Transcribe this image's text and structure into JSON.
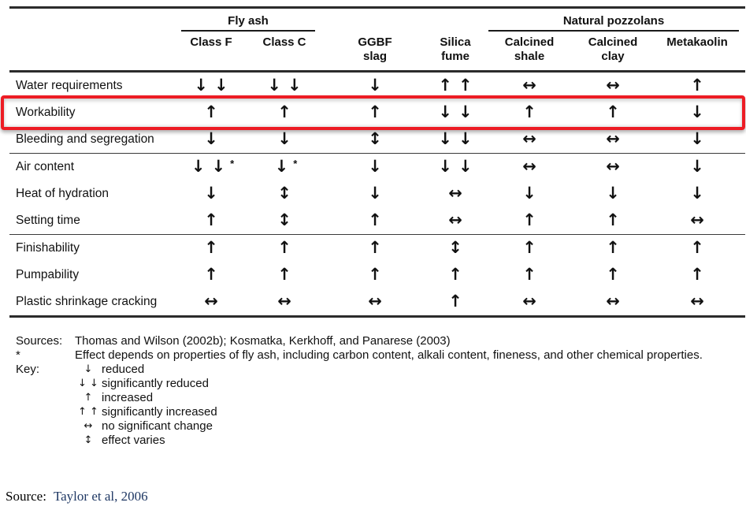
{
  "colors": {
    "highlight": "#ed1c24",
    "citation": "#1f3864",
    "line": "#2b2b2b"
  },
  "table": {
    "group_headers": [
      {
        "label": "Fly ash",
        "span": 2
      },
      {
        "label": "Natural pozzolans",
        "span": 3
      }
    ],
    "columns": [
      "Class F",
      "Class C",
      "GGBF\nslag",
      "Silica\nfume",
      "Calcined\nshale",
      "Calcined\nclay",
      "Metakaolin"
    ],
    "rows": [
      {
        "label": "Water requirements",
        "cells": [
          "↓↓",
          "↓↓",
          "↓",
          "↑↑",
          "↔",
          "↔",
          "↑"
        ],
        "highlighted": false,
        "group_end": false
      },
      {
        "label": "Workability",
        "cells": [
          "↑",
          "↑",
          "↑",
          "↓↓",
          "↑",
          "↑",
          "↓"
        ],
        "highlighted": true,
        "group_end": false
      },
      {
        "label": "Bleeding and segregation",
        "cells": [
          "↓",
          "↓",
          "↕",
          "↓↓",
          "↔",
          "↔",
          "↓"
        ],
        "highlighted": false,
        "group_end": true
      },
      {
        "label": "Air content",
        "cells": [
          "↓↓*",
          "↓*",
          "↓",
          "↓↓",
          "↔",
          "↔",
          "↓"
        ],
        "highlighted": false,
        "group_end": false
      },
      {
        "label": "Heat of hydration",
        "cells": [
          "↓",
          "↕",
          "↓",
          "↔",
          "↓",
          "↓",
          "↓"
        ],
        "highlighted": false,
        "group_end": false
      },
      {
        "label": "Setting time",
        "cells": [
          "↑",
          "↕",
          "↑",
          "↔",
          "↑",
          "↑",
          "↔"
        ],
        "highlighted": false,
        "group_end": true
      },
      {
        "label": "Finishability",
        "cells": [
          "↑",
          "↑",
          "↑",
          "↕",
          "↑",
          "↑",
          "↑"
        ],
        "highlighted": false,
        "group_end": false
      },
      {
        "label": "Pumpability",
        "cells": [
          "↑",
          "↑",
          "↑",
          "↑",
          "↑",
          "↑",
          "↑"
        ],
        "highlighted": false,
        "group_end": false
      },
      {
        "label": "Plastic shrinkage cracking",
        "cells": [
          "↔",
          "↔",
          "↔",
          "↑",
          "↔",
          "↔",
          "↔"
        ],
        "highlighted": false,
        "group_end": false
      }
    ]
  },
  "footnotes": {
    "sources_label": "Sources:",
    "sources_text": "Thomas and Wilson (2002b); Kosmatka, Kerkhoff, and Panarese (2003)",
    "asterisk_label": "*",
    "asterisk_text": "Effect depends on properties of fly ash, including carbon content, alkali content, fineness, and other chemical properties.",
    "key_label": "Key:",
    "key_items": [
      {
        "symbol": "↓",
        "meaning": "reduced"
      },
      {
        "symbol": "↓ ↓",
        "meaning": "significantly reduced"
      },
      {
        "symbol": "↑",
        "meaning": "increased"
      },
      {
        "symbol": "↑ ↑",
        "meaning": "significantly increased"
      },
      {
        "symbol": "↔",
        "meaning": "no significant change"
      },
      {
        "symbol": "↕",
        "meaning": "effect varies"
      }
    ]
  },
  "caption": {
    "label": "Source:",
    "text": "Taylor et al, 2006"
  }
}
